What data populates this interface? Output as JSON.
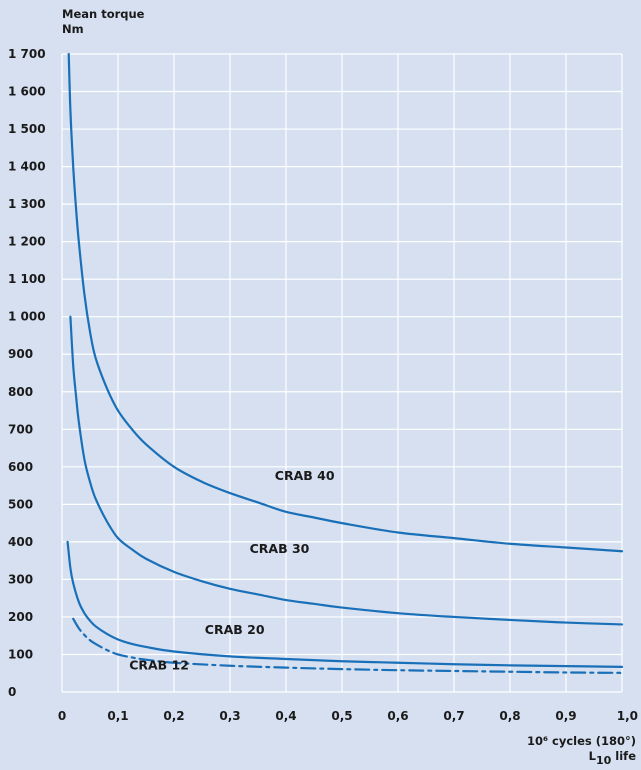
{
  "chart_data": {
    "type": "line",
    "ylabel_line1": "Mean torque",
    "ylabel_line2": "Nm",
    "xlabel_line1": "10⁶ cycles (180°)",
    "xlabel_line2_main": "L",
    "xlabel_line2_sub": "10",
    "xlabel_line2_rest": " life",
    "xlim": [
      0,
      1.0
    ],
    "ylim": [
      0,
      1700
    ],
    "grid": true,
    "xticks": [
      {
        "value": 0,
        "label": "0"
      },
      {
        "value": 0.1,
        "label": "0,1"
      },
      {
        "value": 0.2,
        "label": "0,2"
      },
      {
        "value": 0.3,
        "label": "0,3"
      },
      {
        "value": 0.4,
        "label": "0,4"
      },
      {
        "value": 0.5,
        "label": "0,5"
      },
      {
        "value": 0.6,
        "label": "0,6"
      },
      {
        "value": 0.7,
        "label": "0,7"
      },
      {
        "value": 0.8,
        "label": "0,8"
      },
      {
        "value": 0.9,
        "label": "0,9"
      },
      {
        "value": 1.0,
        "label": "1,0"
      }
    ],
    "yticks": [
      {
        "value": 0,
        "label": "0"
      },
      {
        "value": 100,
        "label": "100"
      },
      {
        "value": 200,
        "label": "200"
      },
      {
        "value": 300,
        "label": "300"
      },
      {
        "value": 400,
        "label": "400"
      },
      {
        "value": 500,
        "label": "500"
      },
      {
        "value": 600,
        "label": "600"
      },
      {
        "value": 700,
        "label": "700"
      },
      {
        "value": 800,
        "label": "800"
      },
      {
        "value": 900,
        "label": "900"
      },
      {
        "value": 1000,
        "label": "1 000"
      },
      {
        "value": 1100,
        "label": "1 100"
      },
      {
        "value": 1200,
        "label": "1 200"
      },
      {
        "value": 1300,
        "label": "1 300"
      },
      {
        "value": 1400,
        "label": "1 400"
      },
      {
        "value": 1500,
        "label": "1 500"
      },
      {
        "value": 1600,
        "label": "1 600"
      },
      {
        "value": 1700,
        "label": "1 700"
      }
    ],
    "series": [
      {
        "name": "CRAB 40",
        "style": "solid",
        "label_at": [
          0.38,
          565
        ],
        "x": [
          0.012,
          0.015,
          0.02,
          0.025,
          0.03,
          0.04,
          0.05,
          0.06,
          0.08,
          0.1,
          0.125,
          0.15,
          0.2,
          0.25,
          0.3,
          0.35,
          0.4,
          0.45,
          0.5,
          0.6,
          0.7,
          0.8,
          0.9,
          1.0
        ],
        "values": [
          1700,
          1550,
          1400,
          1290,
          1200,
          1060,
          960,
          890,
          810,
          750,
          700,
          660,
          600,
          560,
          530,
          505,
          480,
          465,
          450,
          425,
          410,
          395,
          385,
          375
        ]
      },
      {
        "name": "CRAB 30",
        "style": "solid",
        "label_at": [
          0.335,
          370
        ],
        "x": [
          0.015,
          0.02,
          0.025,
          0.03,
          0.04,
          0.05,
          0.06,
          0.08,
          0.1,
          0.125,
          0.15,
          0.2,
          0.25,
          0.3,
          0.35,
          0.4,
          0.45,
          0.5,
          0.6,
          0.7,
          0.8,
          0.9,
          1.0
        ],
        "values": [
          1000,
          870,
          790,
          720,
          620,
          560,
          515,
          455,
          410,
          380,
          355,
          320,
          295,
          275,
          260,
          245,
          235,
          225,
          210,
          200,
          192,
          185,
          180
        ]
      },
      {
        "name": "CRAB 20",
        "style": "solid",
        "label_at": [
          0.255,
          155
        ],
        "x": [
          0.01,
          0.015,
          0.02,
          0.03,
          0.04,
          0.05,
          0.06,
          0.08,
          0.1,
          0.125,
          0.15,
          0.2,
          0.3,
          0.4,
          0.5,
          0.6,
          0.7,
          0.8,
          0.9,
          1.0
        ],
        "values": [
          400,
          330,
          290,
          240,
          210,
          190,
          175,
          155,
          140,
          128,
          120,
          108,
          95,
          88,
          82,
          78,
          74,
          71,
          69,
          67
        ]
      },
      {
        "name": "CRAB 12",
        "style": "dashdot",
        "label_at": [
          0.12,
          60
        ],
        "x": [
          0.02,
          0.03,
          0.04,
          0.05,
          0.06,
          0.08,
          0.1,
          0.125,
          0.15,
          0.2,
          0.3,
          0.4,
          0.5,
          0.6,
          0.7,
          0.8,
          0.9,
          1.0
        ],
        "values": [
          195,
          170,
          152,
          138,
          128,
          112,
          100,
          92,
          86,
          78,
          70,
          65,
          61,
          58,
          56,
          54,
          52,
          51
        ]
      }
    ],
    "colors": {
      "background": "#d6e0f0",
      "grid": "#ffffff",
      "curve": "#1a70b8",
      "text": "#1a1a1a"
    }
  }
}
